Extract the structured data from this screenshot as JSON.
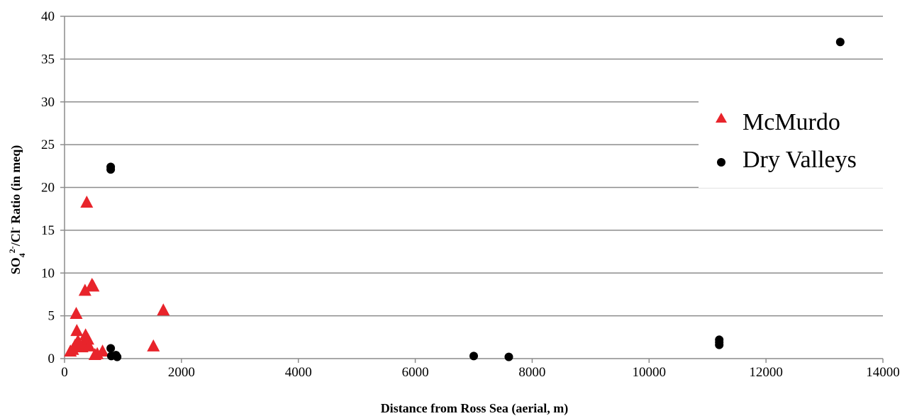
{
  "chart_data": {
    "type": "scatter",
    "xlabel": "Distance from Ross Sea (aerial, m)",
    "ylabel": {
      "prefix": "SO",
      "sub": "4",
      "sup": "2-",
      "mid": "/Cl",
      "sup2": "-",
      "suffix": " Ratio (in meq)"
    },
    "xlim": [
      0,
      14000
    ],
    "ylim": [
      0,
      40
    ],
    "xticks": [
      0,
      2000,
      4000,
      6000,
      8000,
      10000,
      12000,
      14000
    ],
    "yticks": [
      0,
      5,
      10,
      15,
      20,
      25,
      30,
      35,
      40
    ],
    "grid": "horizontal",
    "legend_position": "right",
    "series": [
      {
        "name": "McMurdo",
        "marker": "triangle",
        "color": "#e8242b",
        "points": [
          [
            100,
            0.8
          ],
          [
            140,
            1.0
          ],
          [
            180,
            1.5
          ],
          [
            200,
            5.2
          ],
          [
            210,
            3.2
          ],
          [
            230,
            2.0
          ],
          [
            260,
            1.6
          ],
          [
            300,
            1.3
          ],
          [
            330,
            1.8
          ],
          [
            350,
            7.9
          ],
          [
            360,
            2.7
          ],
          [
            380,
            18.2
          ],
          [
            400,
            2.2
          ],
          [
            420,
            1.4
          ],
          [
            470,
            8.6
          ],
          [
            490,
            8.4
          ],
          [
            520,
            0.4
          ],
          [
            560,
            0.5
          ],
          [
            650,
            0.8
          ],
          [
            1520,
            1.4
          ],
          [
            1690,
            5.6
          ]
        ]
      },
      {
        "name": "Dry Valleys",
        "marker": "circle",
        "color": "#000000",
        "points": [
          [
            790,
            22.4
          ],
          [
            790,
            22.1
          ],
          [
            790,
            1.2
          ],
          [
            800,
            0.3
          ],
          [
            880,
            0.4
          ],
          [
            900,
            0.2
          ],
          [
            7000,
            0.3
          ],
          [
            7600,
            0.2
          ],
          [
            11200,
            2.2
          ],
          [
            11200,
            1.9
          ],
          [
            11200,
            1.6
          ],
          [
            13270,
            37.0
          ]
        ]
      }
    ]
  }
}
